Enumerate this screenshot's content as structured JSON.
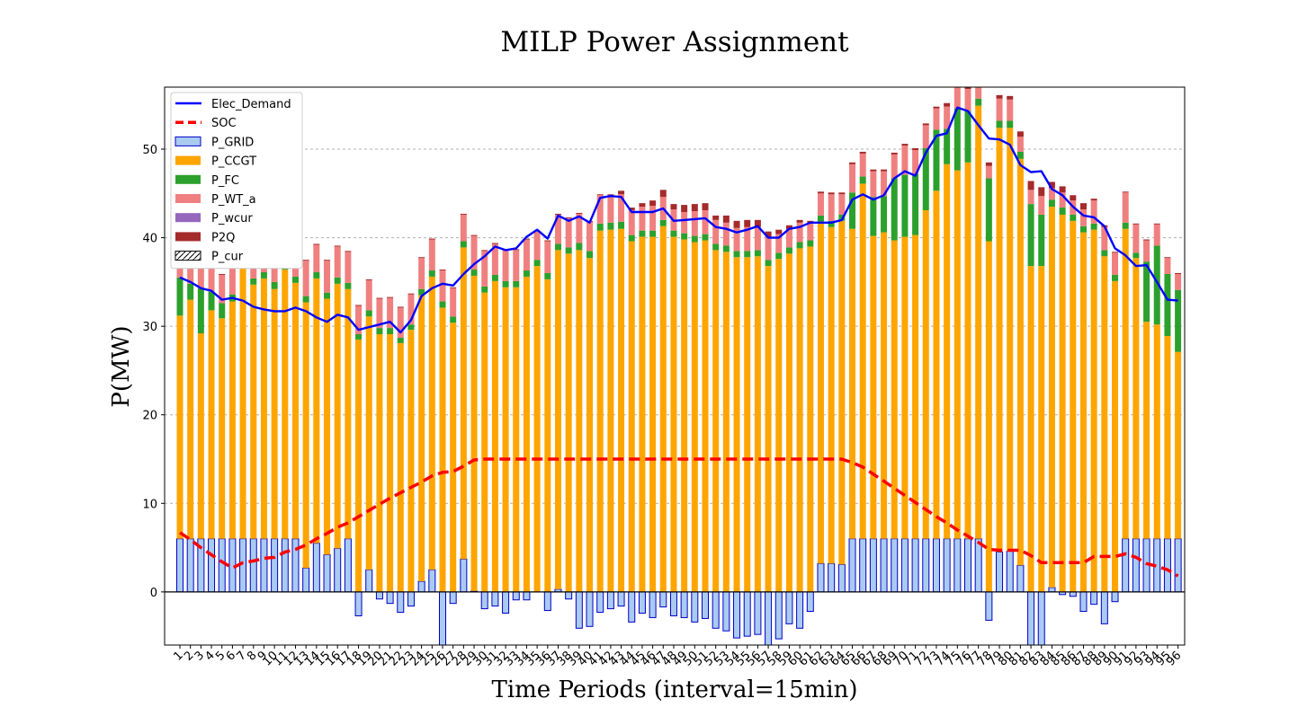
{
  "chart_data": {
    "type": "bar",
    "title": "MILP Power Assignment",
    "xlabel": "Time Periods (interval=15min)",
    "ylabel": "P(MW)",
    "ylim": [
      -6,
      57
    ],
    "yticks": [
      0,
      10,
      20,
      30,
      40,
      50
    ],
    "grid": "y-dashed",
    "legend_position": "top-left",
    "stacking": "stacked bars: positive components stack upward from 0; negative P_CCGT/P_GRID extend below 0",
    "categories": [
      "1",
      "2",
      "3",
      "4",
      "5",
      "6",
      "7",
      "8",
      "9",
      "10",
      "11",
      "12",
      "13",
      "14",
      "15",
      "16",
      "17",
      "18",
      "19",
      "20",
      "21",
      "22",
      "23",
      "24",
      "25",
      "26",
      "27",
      "28",
      "29",
      "30",
      "31",
      "32",
      "33",
      "34",
      "35",
      "36",
      "37",
      "38",
      "39",
      "40",
      "41",
      "42",
      "43",
      "44",
      "45",
      "46",
      "47",
      "48",
      "49",
      "50",
      "51",
      "52",
      "53",
      "54",
      "55",
      "56",
      "57",
      "58",
      "59",
      "60",
      "61",
      "62",
      "63",
      "64",
      "65",
      "66",
      "67",
      "68",
      "69",
      "70",
      "71",
      "72",
      "73",
      "74",
      "75",
      "76",
      "77",
      "78",
      "79",
      "80",
      "81",
      "82",
      "83",
      "84",
      "85",
      "86",
      "87",
      "88",
      "89",
      "90",
      "91",
      "92",
      "93",
      "94",
      "95",
      "96"
    ],
    "series": [
      {
        "name": "P_GRID",
        "kind": "bar",
        "color": "#aacbf0",
        "edge": "#0000cc",
        "values": [
          6,
          6,
          6,
          6,
          6,
          6,
          6,
          6,
          6,
          6,
          6,
          6,
          2.7,
          5.5,
          4.2,
          4.9,
          6,
          -2.7,
          2.5,
          -0.8,
          -1.3,
          -2.3,
          -1.6,
          1.2,
          2.5,
          -6,
          -1.3,
          3.7,
          0.1,
          -1.9,
          -1.6,
          -2.4,
          -0.9,
          -0.9,
          0,
          -2.1,
          0.3,
          -0.8,
          -4.1,
          -3.9,
          -2.3,
          -1.9,
          -1.6,
          -3.4,
          -2.4,
          -2.9,
          -1.7,
          -2.7,
          -2.9,
          -3.4,
          -3.0,
          -4.1,
          -4.4,
          -5.2,
          -5.0,
          -4.8,
          -6,
          -5.3,
          -3.6,
          -4.1,
          -2.2,
          3.2,
          3.2,
          3.1,
          6,
          6,
          6,
          6,
          6,
          6,
          6,
          6,
          6,
          6,
          6,
          6,
          6,
          -3.2,
          4.5,
          4.6,
          3.0,
          -6,
          -6,
          0.5,
          -0.3,
          -0.5,
          -2.2,
          -1.4,
          -3.6,
          -1.1,
          6,
          6,
          6,
          6,
          6,
          6
        ]
      },
      {
        "name": "P_CCGT",
        "kind": "bar",
        "color": "#ffa500",
        "values": [
          25.2,
          27.0,
          23.2,
          25.8,
          24.9,
          26.8,
          32.1,
          28.7,
          29.4,
          28.2,
          30.4,
          28.9,
          30.0,
          29.9,
          28.9,
          29.9,
          28.2,
          28.5,
          28.6,
          29.1,
          29.1,
          28.1,
          29.6,
          32.3,
          33.1,
          32.1,
          30.4,
          35.2,
          35.6,
          33.8,
          35.1,
          34.4,
          34.4,
          35.6,
          36.8,
          35.3,
          38.3,
          38.2,
          38.6,
          37.7,
          40.8,
          40.9,
          41.0,
          39.6,
          40.1,
          40.1,
          41.3,
          40.1,
          39.8,
          39.5,
          39.7,
          38.6,
          38.4,
          37.8,
          37.8,
          37.9,
          36.8,
          37.6,
          38.2,
          38.8,
          39.0,
          38.6,
          38.0,
          38.8,
          35.0,
          40.1,
          34.2,
          34.6,
          33.7,
          34.1,
          34.3,
          37.1,
          39.3,
          42.3,
          41.6,
          42.5,
          48.9,
          39.6,
          47.9,
          47.8,
          45.9,
          36.8,
          36.8,
          43.0,
          42.6,
          41.9,
          40.6,
          40.9,
          37.9,
          35.1,
          35.0,
          31.7,
          24.5,
          24.2,
          22.9,
          21.1
        ]
      },
      {
        "name": "P_FC",
        "kind": "bar",
        "color": "#2ca02c",
        "values": [
          4.3,
          1.8,
          5.1,
          2.1,
          1.7,
          0.8,
          1.0,
          0.7,
          0.7,
          0.8,
          0.8,
          0.7,
          0.7,
          0.7,
          0.7,
          0.7,
          0.7,
          0.6,
          0.7,
          0.7,
          0.7,
          0.6,
          0.6,
          0.7,
          0.7,
          0.7,
          0.7,
          0.7,
          0.7,
          0.7,
          0.7,
          0.7,
          0.7,
          0.7,
          0.7,
          0.7,
          0.7,
          0.7,
          0.8,
          0.8,
          0.8,
          0.8,
          0.8,
          0.7,
          0.7,
          0.7,
          0.7,
          0.7,
          0.7,
          0.7,
          0.7,
          0.7,
          0.7,
          0.7,
          0.7,
          0.7,
          0.7,
          0.7,
          0.7,
          0.7,
          0.7,
          0.7,
          0.7,
          0.7,
          4.1,
          0.8,
          4.4,
          4.1,
          7.0,
          7.0,
          6.9,
          7.0,
          6.9,
          4.0,
          7.0,
          5.8,
          0.8,
          7.1,
          0.8,
          0.8,
          0.8,
          7.0,
          5.8,
          0.8,
          0.8,
          0.7,
          0.7,
          0.7,
          0.7,
          0.7,
          0.7,
          0.6,
          6.8,
          8.9,
          7.0,
          7.0
        ]
      },
      {
        "name": "P_WT_a",
        "kind": "bar",
        "color": "#f08080",
        "values": [
          2.9,
          3.0,
          2.7,
          3.0,
          3.2,
          3.0,
          2.7,
          2.9,
          3.1,
          2.9,
          3.4,
          2.9,
          4.0,
          3.1,
          3.6,
          3.5,
          3.5,
          3.2,
          3.4,
          3.3,
          3.4,
          3.4,
          3.4,
          3.5,
          3.5,
          3.5,
          3.2,
          3.0,
          3.8,
          4.0,
          3.5,
          3.5,
          3.5,
          3.5,
          3.2,
          3.6,
          3.3,
          3.3,
          3.3,
          3.3,
          3.2,
          3.1,
          3.1,
          2.8,
          2.7,
          2.8,
          2.6,
          2.4,
          2.4,
          2.8,
          2.7,
          2.7,
          2.6,
          2.6,
          2.7,
          2.6,
          2.6,
          2.1,
          2.0,
          2.2,
          2.0,
          2.5,
          3.0,
          2.3,
          3.2,
          2.6,
          2.9,
          2.8,
          2.7,
          3.3,
          2.7,
          2.6,
          2.4,
          2.5,
          2.6,
          2.5,
          2.5,
          1.4,
          2.5,
          2.4,
          1.7,
          1.6,
          2.1,
          1.3,
          1.7,
          1.6,
          1.9,
          2.6,
          2.6,
          2.5,
          3.4,
          3.2,
          2.4,
          2.4,
          1.8,
          1.8
        ]
      },
      {
        "name": "P_wcur",
        "kind": "bar",
        "color": "#9467bd",
        "values": [
          0,
          0,
          0,
          0,
          0,
          0,
          0,
          0,
          0,
          0,
          0,
          0,
          0,
          0,
          0,
          0,
          0,
          0,
          0,
          0,
          0,
          0,
          0,
          0,
          0,
          0,
          0,
          0,
          0,
          0,
          0,
          0,
          0,
          0,
          0,
          0,
          0,
          0,
          0,
          0,
          0,
          0,
          0,
          0,
          0,
          0,
          0,
          0,
          0,
          0,
          0,
          0,
          0,
          0,
          0,
          0,
          0,
          0,
          0,
          0,
          0,
          0,
          0,
          0,
          0,
          0,
          0,
          0,
          0,
          0,
          0,
          0,
          0,
          0,
          0,
          0,
          0,
          0,
          0,
          0,
          0,
          0,
          0,
          0,
          0,
          0,
          0,
          0,
          0,
          0,
          0,
          0,
          0,
          0,
          0,
          0
        ]
      },
      {
        "name": "P2Q",
        "kind": "bar",
        "color": "#a52a2a",
        "values": [
          0.1,
          0.1,
          0.1,
          0.1,
          0.1,
          0.1,
          0.1,
          0.1,
          0.1,
          0.1,
          0.1,
          0.1,
          0.1,
          0.1,
          0.1,
          0.1,
          0.1,
          0.1,
          0.1,
          0.1,
          0.1,
          0.1,
          0.1,
          0.1,
          0.1,
          0.1,
          0.1,
          0.1,
          0.1,
          0.1,
          0.1,
          0.1,
          0.1,
          0.1,
          0.1,
          0.1,
          0.1,
          0.1,
          0.1,
          0.1,
          0.1,
          0.1,
          0.4,
          0.3,
          0.4,
          0.6,
          0.8,
          0.6,
          0.8,
          0.8,
          0.8,
          0.5,
          0.8,
          0.8,
          0.8,
          0.8,
          0.6,
          0.5,
          0.5,
          0.3,
          0.2,
          0.2,
          0.2,
          0.2,
          0.2,
          0.2,
          0.2,
          0.2,
          0.2,
          0.2,
          0.2,
          0.2,
          0.2,
          0.4,
          0.4,
          0.6,
          0.6,
          0.4,
          0.4,
          0.4,
          0.6,
          1.0,
          1.0,
          0.7,
          0.7,
          0.6,
          0.7,
          0.2,
          0.2,
          0.1,
          0.1,
          0.1,
          0.1,
          0.1,
          0.1,
          0.1
        ]
      },
      {
        "name": "P_cur",
        "kind": "bar",
        "color": "#ffffff",
        "edge": "#000000",
        "hatch": "/",
        "values": [
          0,
          0,
          0,
          0,
          0,
          0,
          0,
          0,
          0,
          0,
          0,
          0,
          0,
          0,
          0,
          0,
          0,
          0,
          0,
          0,
          0,
          0,
          0,
          0,
          0,
          0,
          0,
          0,
          0,
          0,
          0,
          0,
          0,
          0,
          0,
          0,
          0,
          0,
          0,
          0,
          0,
          0,
          0,
          0,
          0,
          0,
          0,
          0,
          0,
          0,
          0,
          0,
          0,
          0,
          0,
          0,
          0,
          0,
          0,
          0,
          0,
          0,
          0,
          0,
          0,
          0,
          0,
          0,
          0,
          0,
          0,
          0,
          0,
          0,
          0,
          0,
          0,
          0,
          0,
          0,
          0,
          0,
          0,
          0,
          0,
          0,
          0,
          0,
          0,
          0,
          0,
          0,
          0,
          0,
          0,
          0
        ]
      },
      {
        "name": "Elec_Demand",
        "kind": "line",
        "color": "#0000ff",
        "values": [
          35.5,
          35.0,
          34.3,
          34.0,
          33.0,
          33.2,
          32.9,
          32.2,
          31.9,
          31.7,
          31.7,
          32.1,
          31.7,
          31.0,
          30.5,
          31.3,
          31.0,
          29.6,
          29.9,
          30.2,
          30.5,
          29.3,
          30.7,
          33.4,
          34.3,
          34.8,
          34.6,
          35.9,
          37.0,
          37.9,
          39.0,
          38.6,
          38.8,
          40.1,
          40.9,
          39.9,
          42.5,
          41.9,
          42.4,
          41.7,
          44.5,
          44.7,
          44.6,
          42.9,
          42.9,
          42.9,
          43.3,
          41.9,
          42.0,
          42.1,
          42.2,
          41.2,
          41.0,
          40.6,
          40.9,
          41.3,
          40.0,
          40.0,
          41.0,
          41.2,
          41.7,
          41.7,
          41.7,
          42.0,
          44.3,
          44.9,
          44.3,
          44.8,
          46.7,
          47.5,
          47.0,
          49.6,
          51.5,
          51.8,
          54.7,
          54.3,
          52.7,
          51.2,
          51.1,
          50.5,
          48.2,
          47.4,
          47.5,
          45.5,
          44.8,
          43.5,
          42.5,
          42.3,
          41.3,
          38.8,
          38.0,
          36.8,
          36.9,
          35.0,
          33.0,
          32.9
        ]
      },
      {
        "name": "SOC",
        "kind": "line",
        "style": "dashed",
        "color": "#ff0000",
        "values": [
          6.7,
          5.9,
          5.0,
          4.2,
          3.4,
          2.7,
          3.3,
          3.5,
          3.8,
          3.9,
          4.5,
          4.8,
          5.3,
          6.0,
          6.6,
          7.3,
          7.8,
          8.5,
          9.2,
          9.9,
          10.6,
          11.2,
          11.8,
          12.4,
          13.1,
          13.5,
          13.6,
          14.2,
          14.9,
          15,
          15,
          15,
          15,
          15,
          15,
          15,
          15,
          15,
          15,
          15,
          15,
          15,
          15,
          15,
          15,
          15,
          15,
          15,
          15,
          15,
          15,
          15,
          15,
          15,
          15,
          15,
          15,
          15,
          15,
          15,
          15,
          15,
          15,
          15,
          14.6,
          14.1,
          13.3,
          12.5,
          11.7,
          10.9,
          10.1,
          9.3,
          8.5,
          7.8,
          7.0,
          6.3,
          5.6,
          4.8,
          4.7,
          4.7,
          4.7,
          4.1,
          3.3,
          3.3,
          3.3,
          3.3,
          3.3,
          4.0,
          4.0,
          4.0,
          4.3,
          3.9,
          3.2,
          2.9,
          2.5,
          1.8
        ]
      }
    ]
  }
}
